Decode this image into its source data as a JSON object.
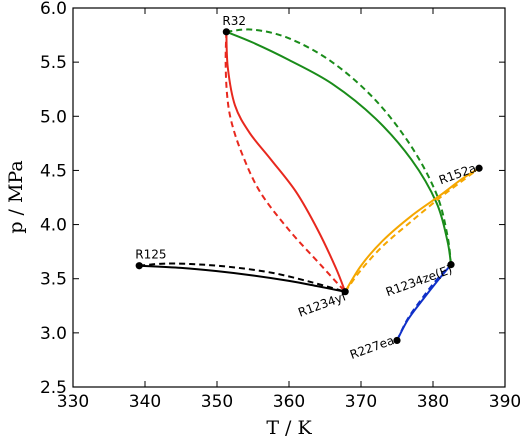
{
  "chart_data": {
    "type": "line",
    "xlabel": "T / K",
    "ylabel": "p / MPa",
    "xlim": [
      330,
      390
    ],
    "ylim": [
      2.5,
      6.0
    ],
    "xticks": [
      330,
      340,
      350,
      360,
      370,
      380,
      390
    ],
    "yticks": [
      2.5,
      3.0,
      3.5,
      4.0,
      4.5,
      5.0,
      5.5,
      6.0
    ],
    "grid": false,
    "points": [
      {
        "label": "R32",
        "x": 351.3,
        "y": 5.78,
        "anchor": "above"
      },
      {
        "label": "R125",
        "x": 339.2,
        "y": 3.62,
        "anchor": "above"
      },
      {
        "label": "R1234yf",
        "x": 367.8,
        "y": 3.38,
        "anchor": "below-left"
      },
      {
        "label": "R152a",
        "x": 386.4,
        "y": 4.52,
        "anchor": "left"
      },
      {
        "label": "R1234ze(E)",
        "x": 382.5,
        "y": 3.63,
        "anchor": "below-left"
      },
      {
        "label": "R227ea",
        "x": 375.0,
        "y": 2.93,
        "anchor": "left"
      }
    ],
    "series": [
      {
        "color": "#000000",
        "style": "solid",
        "x": [
          339.2,
          345,
          350,
          355,
          360,
          364,
          367.8
        ],
        "y": [
          3.62,
          3.6,
          3.57,
          3.53,
          3.48,
          3.43,
          3.38
        ]
      },
      {
        "color": "#000000",
        "style": "dashed",
        "x": [
          339.2,
          343,
          348,
          353,
          358,
          363,
          367.8
        ],
        "y": [
          3.62,
          3.64,
          3.63,
          3.6,
          3.55,
          3.47,
          3.38
        ]
      },
      {
        "color": "#e8281e",
        "style": "solid",
        "x": [
          351.3,
          351.5,
          352.5,
          354.5,
          357.5,
          361,
          364,
          366.5,
          367.8
        ],
        "y": [
          5.78,
          5.45,
          5.1,
          4.85,
          4.6,
          4.3,
          3.95,
          3.6,
          3.38
        ]
      },
      {
        "color": "#e8281e",
        "style": "dashed",
        "x": [
          351.3,
          351.2,
          351.4,
          352,
          353.5,
          356,
          360,
          364.5,
          367.8
        ],
        "y": [
          5.78,
          5.5,
          5.2,
          4.95,
          4.65,
          4.3,
          3.95,
          3.62,
          3.38
        ]
      },
      {
        "color": "#1a8c1a",
        "style": "solid",
        "x": [
          351.3,
          355,
          360,
          366,
          372,
          377,
          380.5,
          382,
          382.5
        ],
        "y": [
          5.78,
          5.68,
          5.52,
          5.3,
          4.98,
          4.6,
          4.2,
          3.85,
          3.63
        ]
      },
      {
        "color": "#1a8c1a",
        "style": "dashed",
        "x": [
          351.3,
          355,
          360,
          366,
          372,
          377,
          380.5,
          382,
          382.5
        ],
        "y": [
          5.78,
          5.8,
          5.72,
          5.5,
          5.15,
          4.72,
          4.28,
          3.9,
          3.63
        ]
      },
      {
        "color": "#f5a700",
        "style": "solid",
        "x": [
          367.8,
          370,
          373,
          377,
          381,
          384,
          386.4
        ],
        "y": [
          3.38,
          3.62,
          3.85,
          4.08,
          4.27,
          4.42,
          4.52
        ]
      },
      {
        "color": "#f5a700",
        "style": "dashed",
        "x": [
          367.8,
          370,
          373,
          377,
          381,
          384,
          386.4
        ],
        "y": [
          3.38,
          3.58,
          3.8,
          4.03,
          4.25,
          4.4,
          4.52
        ]
      },
      {
        "color": "#1030c8",
        "style": "solid",
        "x": [
          375.0,
          376.5,
          378.5,
          380.5,
          382.5
        ],
        "y": [
          2.93,
          3.12,
          3.3,
          3.47,
          3.63
        ]
      },
      {
        "color": "#1030c8",
        "style": "dashed",
        "x": [
          375.0,
          376.5,
          378.5,
          380.5,
          382.5
        ],
        "y": [
          2.93,
          3.13,
          3.32,
          3.49,
          3.63
        ]
      }
    ]
  }
}
